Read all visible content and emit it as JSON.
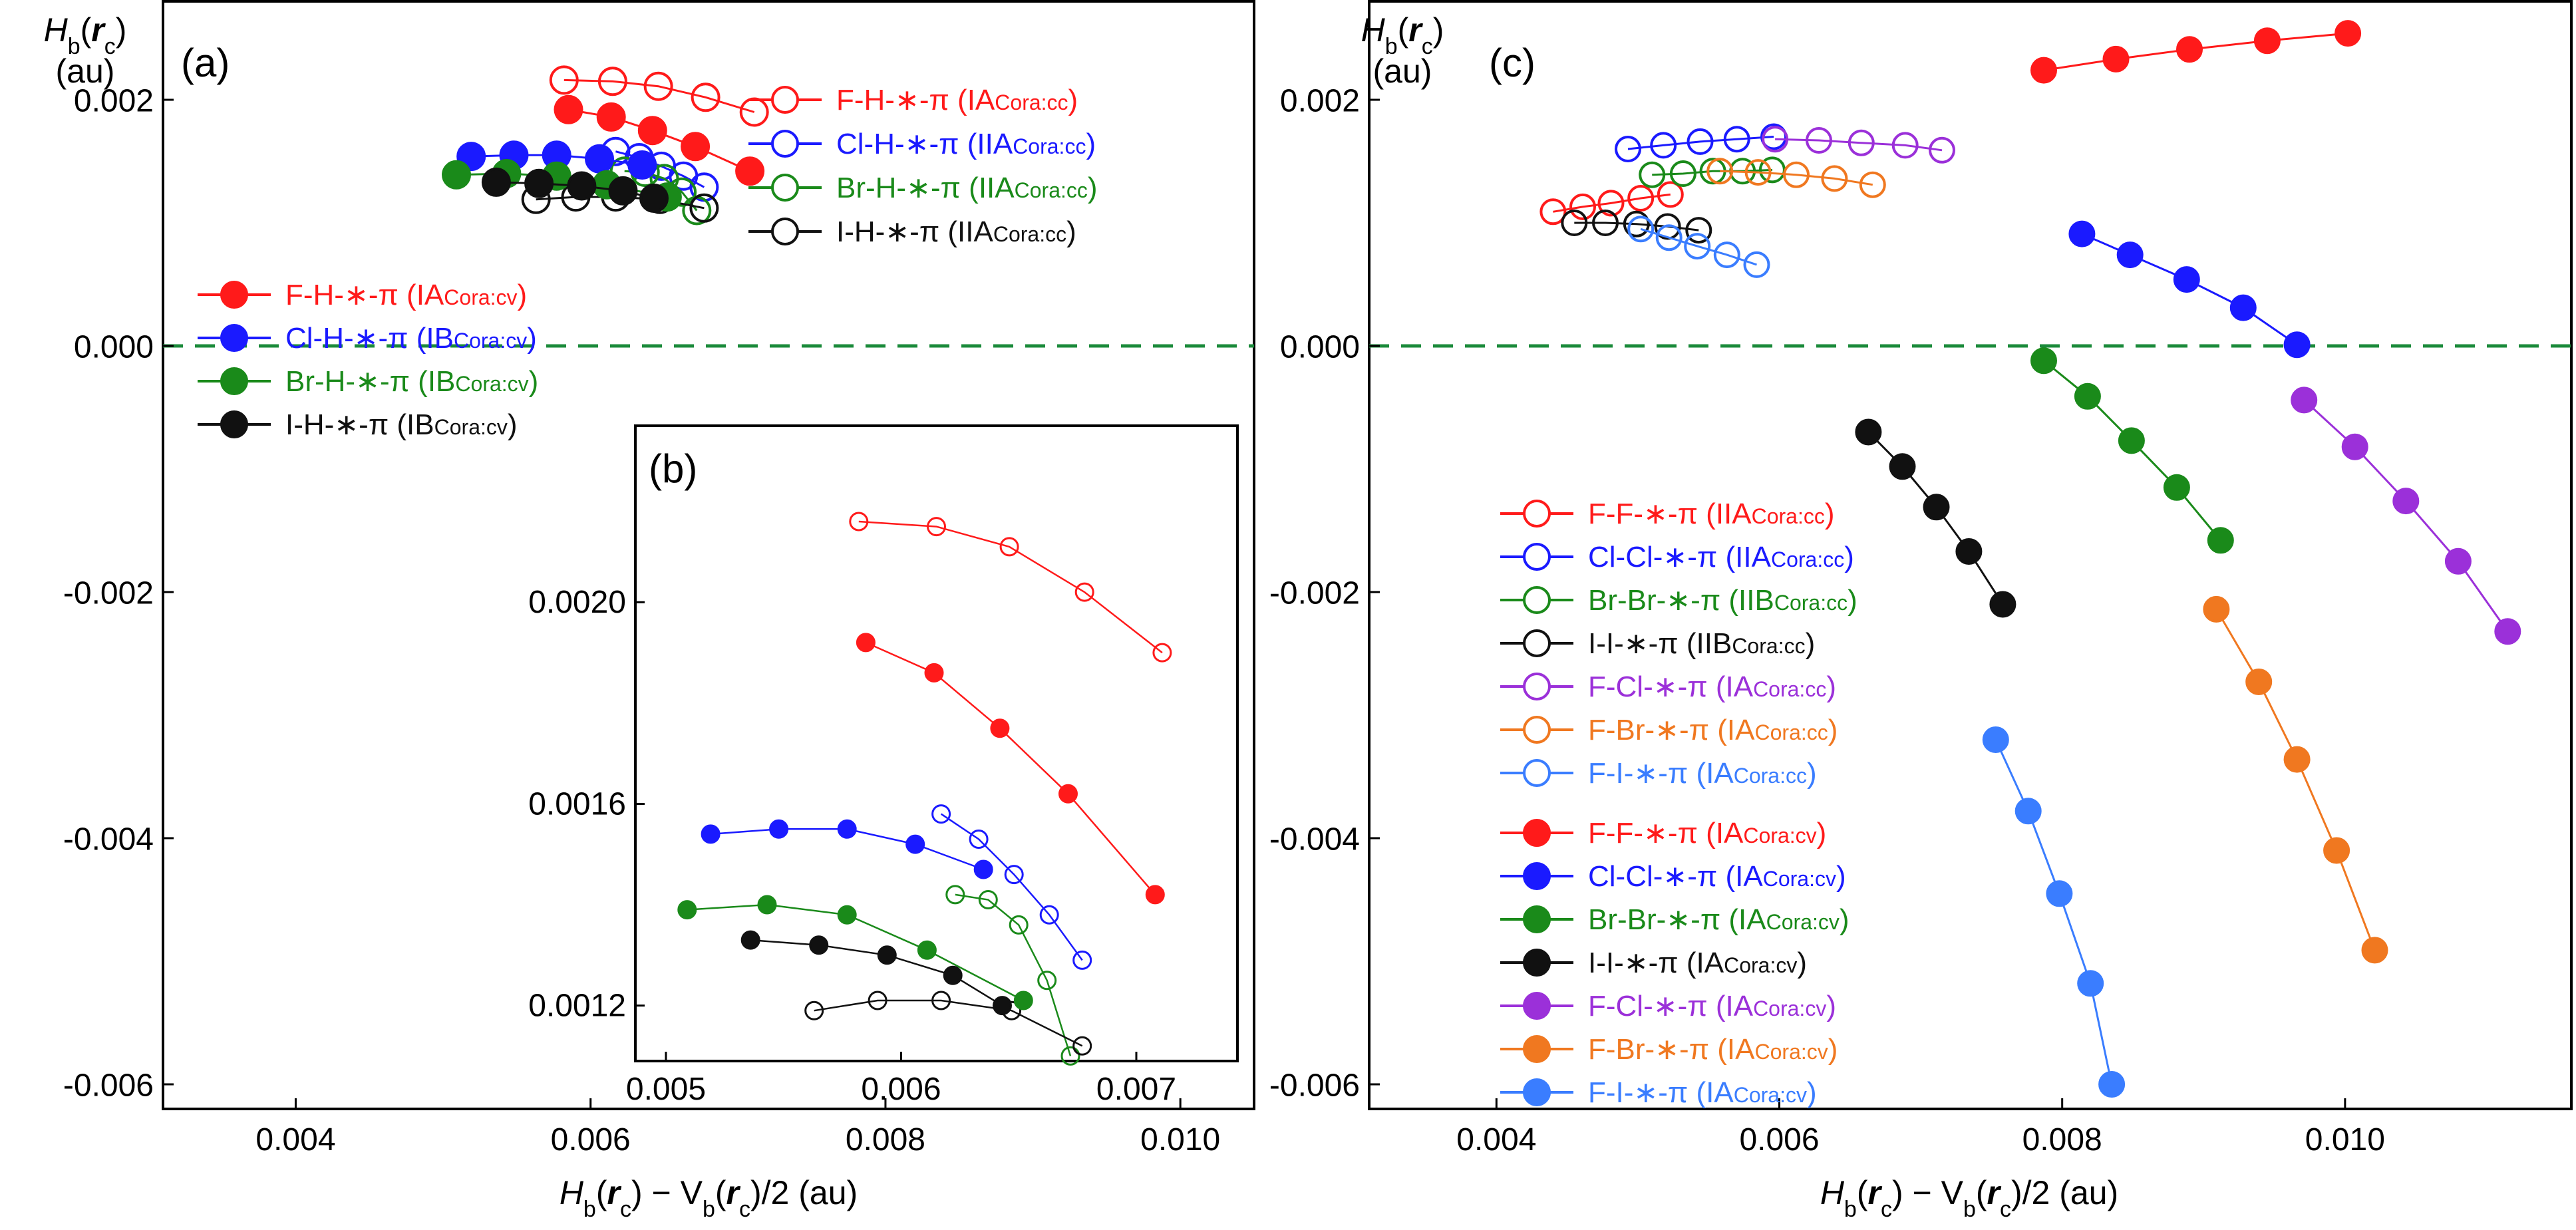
{
  "panels": {
    "a": {
      "label": "(a)"
    },
    "b": {
      "label": "(b)"
    },
    "c": {
      "label": "(c)"
    }
  },
  "axes": {
    "ylabel_main": "H",
    "ylabel_sub": "b",
    "ylabel_paren_open": "(",
    "ylabel_r": "r",
    "ylabel_r_sub": "c",
    "ylabel_paren_close": ")",
    "ylabel_unit": "(au)",
    "xlabel_H": "H",
    "xlabel_H_sub": "b",
    "xlabel_H_open": "(",
    "xlabel_r1": "r",
    "xlabel_r1_sub": "c",
    "xlabel_mid": ") − V",
    "xlabel_V_sub": "b",
    "xlabel_V_open": "(",
    "xlabel_r2": "r",
    "xlabel_r2_sub": "c",
    "xlabel_tail": ")/2 (au)"
  },
  "chart_data": [
    {
      "id": "a",
      "type": "scatter",
      "title": "(a)",
      "xlabel": "Hb(rc) − Vb(rc)/2 (au)",
      "ylabel": "Hb(rc) (au)",
      "xlim": [
        0.0031,
        0.0105
      ],
      "ylim": [
        -0.0062,
        0.0028
      ],
      "xticks": [
        "0.004",
        "0.006",
        "0.008",
        "0.010"
      ],
      "xtick_values": [
        0.004,
        0.006,
        0.008,
        0.01
      ],
      "yticks": [
        "0.002",
        "0.000",
        "-0.002",
        "-0.004",
        "-0.006"
      ],
      "ytick_values": [
        0.002,
        0.0,
        -0.002,
        -0.004,
        -0.006
      ],
      "reference_line": {
        "y": 0.0,
        "style": "dashed",
        "color": "#1a8a3a"
      },
      "legend_placement": [
        "top-right",
        "center-left"
      ],
      "series": [
        {
          "name": "F-H-∗-π (IA",
          "sub": "Cora:cc",
          "close": ")",
          "color": "#ff1a1a",
          "marker": "open",
          "legend_group": 0,
          "x": [
            0.00582,
            0.00615,
            0.00646,
            0.00678,
            0.00711
          ],
          "y": [
            0.00216,
            0.00215,
            0.00211,
            0.00202,
            0.0019
          ]
        },
        {
          "name": "Cl-H-∗-π (IIA",
          "sub": "Cora:cc",
          "close": ")",
          "color": "#1a1aff",
          "marker": "open",
          "legend_group": 0,
          "x": [
            0.00617,
            0.00633,
            0.00648,
            0.00663,
            0.00677
          ],
          "y": [
            0.00158,
            0.00153,
            0.00146,
            0.00138,
            0.00129
          ]
        },
        {
          "name": "Br-H-∗-π (IIA",
          "sub": "Cora:cc",
          "close": ")",
          "color": "#1a8a1a",
          "marker": "open",
          "legend_group": 0,
          "x": [
            0.00623,
            0.00637,
            0.0065,
            0.00662,
            0.00672
          ],
          "y": [
            0.00142,
            0.00141,
            0.00136,
            0.00125,
            0.0011
          ]
        },
        {
          "name": "I-H-∗-π (IIA",
          "sub": "Cora:cc",
          "close": ")",
          "color": "#111111",
          "marker": "open",
          "legend_group": 0,
          "x": [
            0.00563,
            0.0059,
            0.00617,
            0.00647,
            0.00677
          ],
          "y": [
            0.00119,
            0.00121,
            0.00121,
            0.00119,
            0.00112
          ]
        },
        {
          "name": "F-H-∗-π (IA",
          "sub": "Cora:cv",
          "close": ")",
          "color": "#ff1a1a",
          "marker": "filled",
          "legend_group": 1,
          "x": [
            0.00585,
            0.00614,
            0.00642,
            0.00671,
            0.00708
          ],
          "y": [
            0.00192,
            0.00186,
            0.00175,
            0.00162,
            0.00142
          ]
        },
        {
          "name": "Cl-H-∗-π (IB",
          "sub": "Cora:cv",
          "close": ")",
          "color": "#1a1aff",
          "marker": "filled",
          "legend_group": 1,
          "x": [
            0.00519,
            0.00548,
            0.00577,
            0.00606,
            0.00635
          ],
          "y": [
            0.00154,
            0.00155,
            0.00155,
            0.00152,
            0.00147
          ]
        },
        {
          "name": "Br-H-∗-π (IB",
          "sub": "Cora:cv",
          "close": ")",
          "color": "#1a8a1a",
          "marker": "filled",
          "legend_group": 1,
          "x": [
            0.00509,
            0.00543,
            0.00577,
            0.00611,
            0.00652
          ],
          "y": [
            0.00139,
            0.0014,
            0.00138,
            0.00131,
            0.00121
          ]
        },
        {
          "name": "I-H-∗-π (IB",
          "sub": "Cora:cv",
          "close": ")",
          "color": "#111111",
          "marker": "filled",
          "legend_group": 1,
          "x": [
            0.00536,
            0.00565,
            0.00594,
            0.00622,
            0.00643
          ],
          "y": [
            0.00133,
            0.00132,
            0.0013,
            0.00126,
            0.0012
          ]
        }
      ]
    },
    {
      "id": "b",
      "type": "scatter",
      "title": "(b)",
      "xlim": [
        0.00487,
        0.00743
      ],
      "ylim": [
        0.00109,
        0.00235
      ],
      "xticks": [
        "0.005",
        "0.006",
        "0.007"
      ],
      "xtick_values": [
        0.005,
        0.006,
        0.007
      ],
      "yticks": [
        "0.0020",
        "0.0016",
        "0.0012"
      ],
      "ytick_values": [
        0.002,
        0.0016,
        0.0012
      ],
      "note": "inset: zoom of panel (a) data, same series"
    },
    {
      "id": "c",
      "type": "scatter",
      "title": "(c)",
      "xlabel": "Hb(rc) − Vb(rc)/2 (au)",
      "ylabel": "Hb(rc) (au)",
      "xlim": [
        0.0031,
        0.0116
      ],
      "ylim": [
        -0.0062,
        0.0028
      ],
      "xticks": [
        "0.004",
        "0.006",
        "0.008",
        "0.010"
      ],
      "xtick_values": [
        0.004,
        0.006,
        0.008,
        0.01
      ],
      "yticks": [
        "0.002",
        "0.000",
        "-0.002",
        "-0.004",
        "-0.006"
      ],
      "ytick_values": [
        0.002,
        0.0,
        -0.002,
        -0.004,
        -0.006
      ],
      "reference_line": {
        "y": 0.0,
        "style": "dashed",
        "color": "#1a8a3a"
      },
      "legend_placement": "bottom-left",
      "series": [
        {
          "name": "F-F-∗-π (IIA",
          "sub": "Cora:cc",
          "close": ")",
          "color": "#ff1a1a",
          "marker": "open",
          "x": [
            0.0044,
            0.00461,
            0.00481,
            0.00502,
            0.00523
          ],
          "y": [
            0.00109,
            0.00113,
            0.00116,
            0.0012,
            0.00123
          ]
        },
        {
          "name": "Cl-Cl-∗-π (IIA",
          "sub": "Cora:cc",
          "close": ")",
          "color": "#1a1aff",
          "marker": "open",
          "x": [
            0.00493,
            0.00518,
            0.00544,
            0.0057,
            0.00596
          ],
          "y": [
            0.0016,
            0.00163,
            0.00166,
            0.00168,
            0.0017
          ]
        },
        {
          "name": "Br-Br-∗-π (IIB",
          "sub": "Cora:cc",
          "close": ")",
          "color": "#1a8a1a",
          "marker": "open",
          "x": [
            0.0051,
            0.00532,
            0.00553,
            0.00574,
            0.00595
          ],
          "y": [
            0.00139,
            0.0014,
            0.00142,
            0.00142,
            0.00143
          ]
        },
        {
          "name": "I-I-∗-π (IIB",
          "sub": "Cora:cc",
          "close": ")",
          "color": "#111111",
          "marker": "open",
          "x": [
            0.00455,
            0.00477,
            0.00499,
            0.00521,
            0.00543
          ],
          "y": [
            0.001,
            0.001,
            0.00099,
            0.00097,
            0.00094
          ]
        },
        {
          "name": "F-Cl-∗-π (IA",
          "sub": "Cora:cc",
          "close": ")",
          "color": "#9b30d9",
          "marker": "open",
          "x": [
            0.00597,
            0.00628,
            0.00658,
            0.00689,
            0.00715
          ],
          "y": [
            0.00168,
            0.00167,
            0.00165,
            0.00163,
            0.00159
          ]
        },
        {
          "name": "F-Br-∗-π (IA",
          "sub": "Cora:cc",
          "close": ")",
          "color": "#f07820",
          "marker": "open",
          "x": [
            0.00558,
            0.00585,
            0.00612,
            0.00639,
            0.00666
          ],
          "y": [
            0.00142,
            0.00141,
            0.00139,
            0.00136,
            0.00131
          ]
        },
        {
          "name": "F-I-∗-π (IA",
          "sub": "Cora:cc",
          "close": ")",
          "color": "#3a7dff",
          "marker": "open",
          "x": [
            0.00502,
            0.00522,
            0.00542,
            0.00563,
            0.00584
          ],
          "y": [
            0.00095,
            0.00088,
            0.00081,
            0.00074,
            0.00066
          ]
        },
        {
          "name": "F-F-∗-π (IA",
          "sub": "Cora:cv",
          "close": ")",
          "color": "#ff1a1a",
          "marker": "filled",
          "x": [
            0.00787,
            0.00838,
            0.0089,
            0.00945,
            0.01002
          ],
          "y": [
            0.00224,
            0.00233,
            0.00241,
            0.00248,
            0.00254
          ]
        },
        {
          "name": "Cl-Cl-∗-π (IA",
          "sub": "Cora:cv",
          "close": ")",
          "color": "#1a1aff",
          "marker": "filled",
          "x": [
            0.00814,
            0.00848,
            0.00888,
            0.00928,
            0.00966
          ],
          "y": [
            0.00091,
            0.00074,
            0.00054,
            0.00031,
            1e-05
          ]
        },
        {
          "name": "Br-Br-∗-π (IA",
          "sub": "Cora:cv",
          "close": ")",
          "color": "#1a8a1a",
          "marker": "filled",
          "x": [
            0.00787,
            0.00818,
            0.00849,
            0.00881,
            0.00912
          ],
          "y": [
            -0.00012,
            -0.00041,
            -0.00077,
            -0.00115,
            -0.00158
          ]
        },
        {
          "name": "I-I-∗-π (IA",
          "sub": "Cora:cv",
          "close": ")",
          "color": "#111111",
          "marker": "filled",
          "x": [
            0.00663,
            0.00687,
            0.00711,
            0.00734,
            0.00758
          ],
          "y": [
            -0.0007,
            -0.00098,
            -0.00131,
            -0.00167,
            -0.0021
          ]
        },
        {
          "name": "F-Cl-∗-π (IA",
          "sub": "Cora:cv",
          "close": ")",
          "color": "#9b30d9",
          "marker": "filled",
          "x": [
            0.00971,
            0.01007,
            0.01043,
            0.0108,
            0.01115
          ],
          "y": [
            -0.00044,
            -0.00082,
            -0.00126,
            -0.00175,
            -0.00232
          ]
        },
        {
          "name": "F-Br-∗-π (IA",
          "sub": "Cora:cv",
          "close": ")",
          "color": "#f07820",
          "marker": "filled",
          "x": [
            0.00909,
            0.00939,
            0.00966,
            0.00994,
            0.01021
          ],
          "y": [
            -0.00214,
            -0.00273,
            -0.00336,
            -0.0041,
            -0.00491
          ]
        },
        {
          "name": "F-I-∗-π (IA",
          "sub": "Cora:cv",
          "close": ")",
          "color": "#3a7dff",
          "marker": "filled",
          "x": [
            0.00753,
            0.00776,
            0.00798,
            0.0082,
            0.00835
          ],
          "y": [
            -0.0032,
            -0.00378,
            -0.00445,
            -0.00518,
            -0.006
          ]
        }
      ]
    }
  ]
}
